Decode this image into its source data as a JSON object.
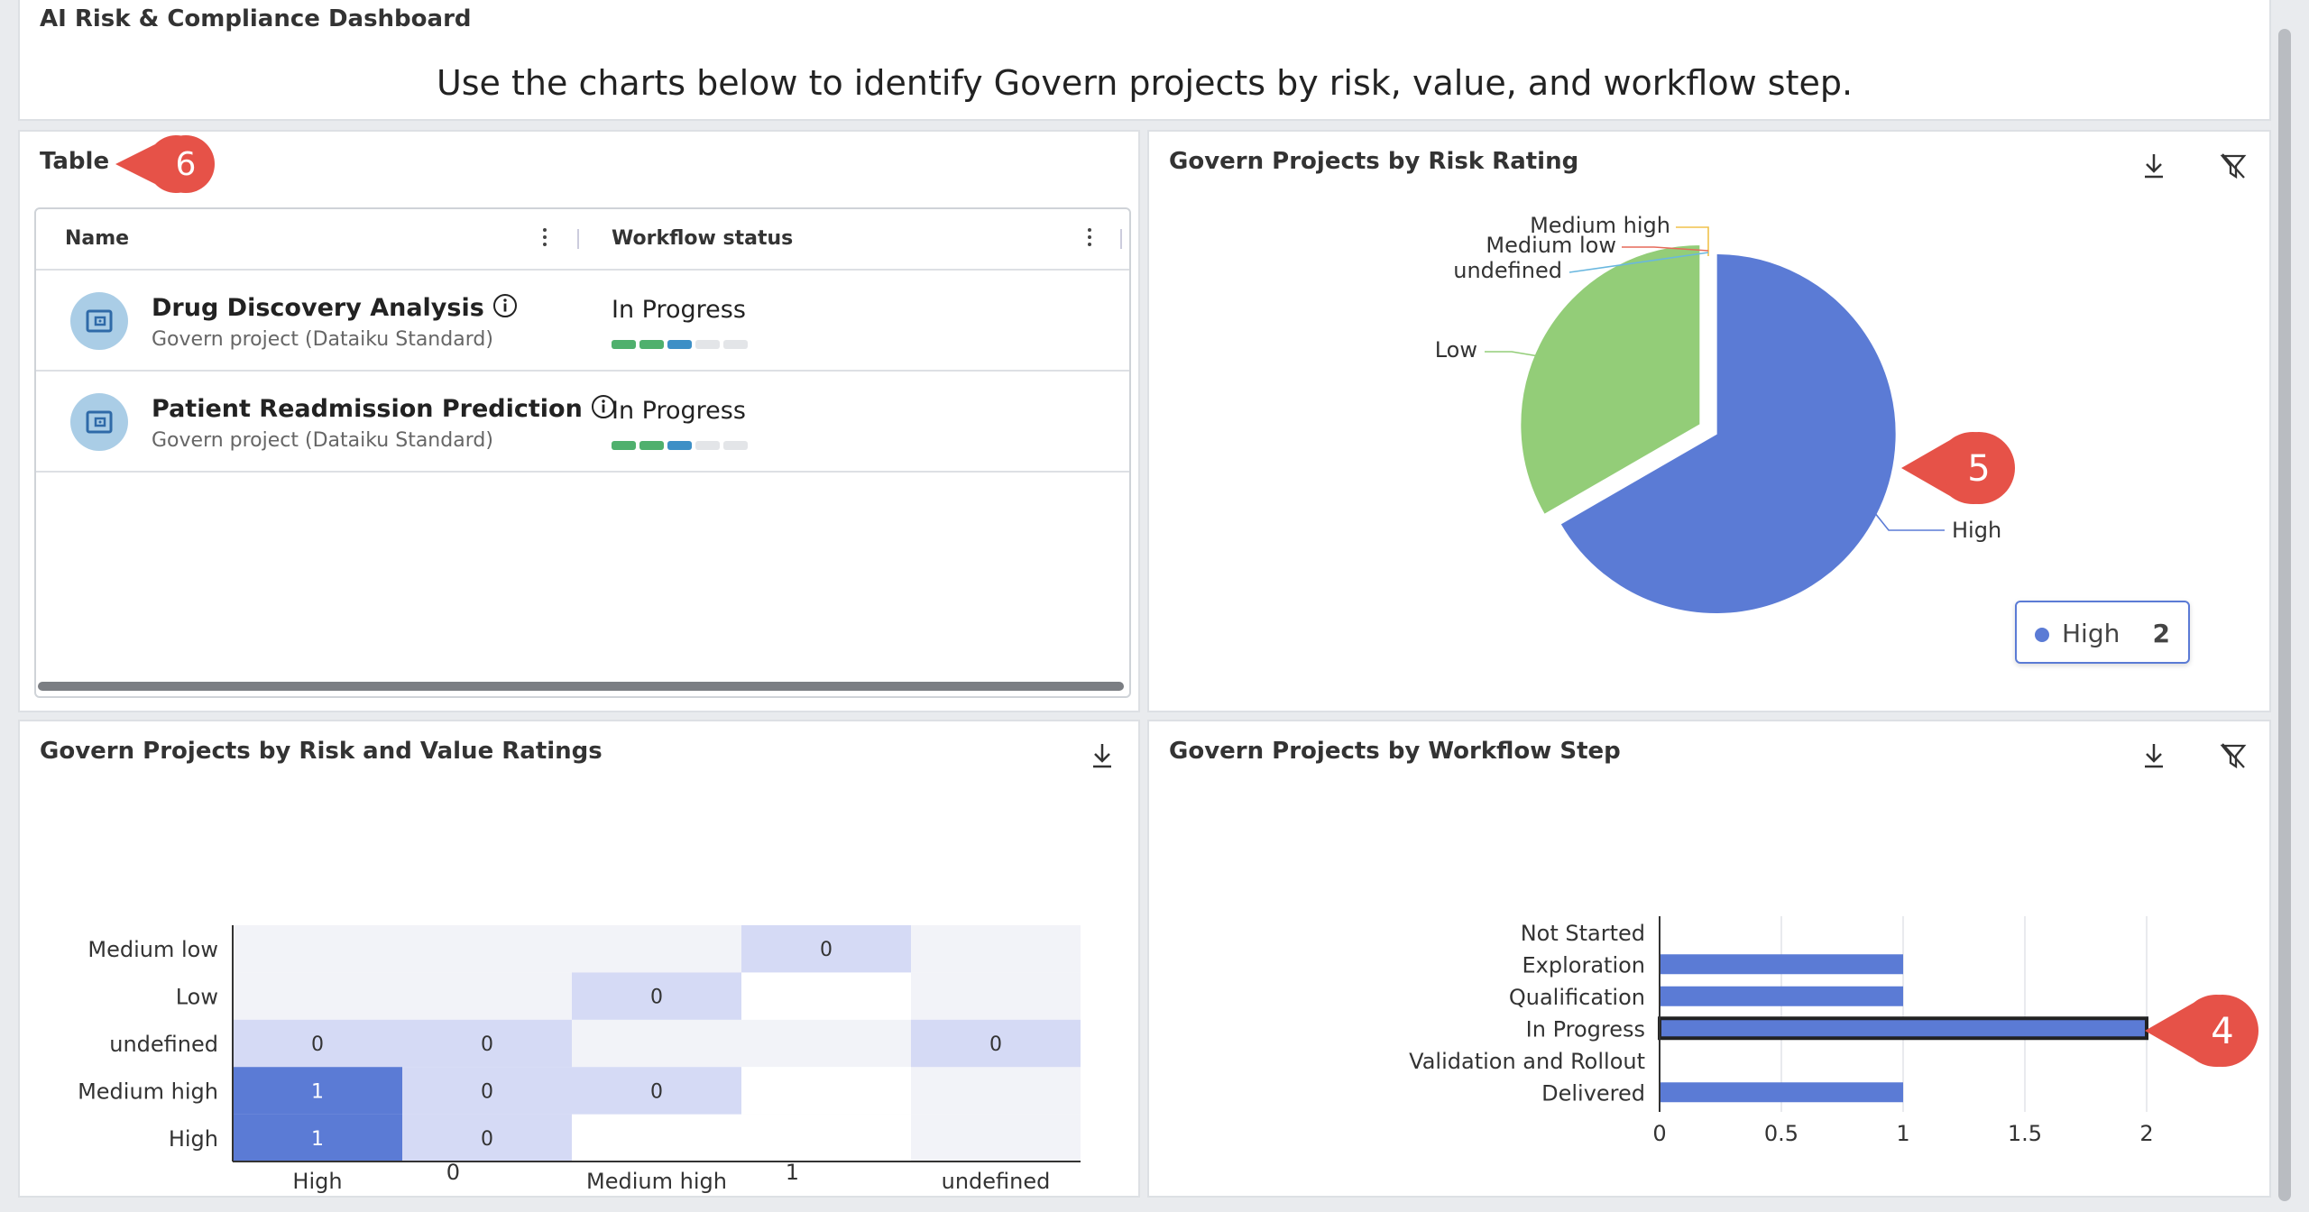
{
  "header": {
    "app_title": "AI Risk & Compliance Dashboard",
    "subtitle": "Use the charts below to identify Govern projects by risk, value, and workflow step."
  },
  "table_panel": {
    "title": "Table",
    "badge": "6",
    "columns": [
      "Name",
      "Workflow status"
    ],
    "rows": [
      {
        "name": "Drug Discovery Analysis",
        "subtitle": "Govern project (Dataiku Standard)",
        "status": "In Progress",
        "steps": [
          "done",
          "done",
          "current",
          "todo",
          "todo"
        ]
      },
      {
        "name": "Patient Readmission Prediction",
        "subtitle": "Govern project (Dataiku Standard)",
        "status": "In Progress",
        "steps": [
          "done",
          "done",
          "current",
          "todo",
          "todo"
        ]
      }
    ],
    "icons": [
      "project-icon",
      "info-icon",
      "kebab-menu-icon"
    ]
  },
  "pie_panel": {
    "title": "Govern Projects by Risk Rating",
    "badge": "5",
    "legend": {
      "label": "High",
      "value": "2"
    },
    "icons": [
      "download-icon",
      "filter-clear-icon"
    ]
  },
  "heatmap_panel": {
    "title": "Govern Projects by Risk and Value Ratings",
    "icons": [
      "download-icon"
    ]
  },
  "bar_panel": {
    "title": "Govern Projects by Workflow Step",
    "badge": "4",
    "icons": [
      "download-icon",
      "filter-clear-icon"
    ]
  },
  "colors": {
    "accent": "#5b7bd5",
    "low": "#93cd78",
    "medium_low": "#e66a5a",
    "medium_high": "#f0c24b",
    "undefined": "#69b7df",
    "badge": "#e65248",
    "step_done": "#4fb06d",
    "step_current": "#3d8fc6",
    "step_todo": "#e3e5e8"
  },
  "chart_data": [
    {
      "type": "pie",
      "labels": [
        "High",
        "Low",
        "undefined",
        "Medium low",
        "Medium high"
      ],
      "values": [
        2,
        1,
        0,
        0,
        0
      ]
    },
    {
      "type": "heatmap",
      "y_categories": [
        "Medium low",
        "Low",
        "undefined",
        "Medium high",
        "High"
      ],
      "x_tick_labels": [
        "High",
        "0",
        "Medium high",
        "1",
        "undefined"
      ],
      "cells": [
        {
          "row": "Medium low",
          "col": 3,
          "value": 0
        },
        {
          "row": "Low",
          "col": 2,
          "value": 0
        },
        {
          "row": "undefined",
          "col": 0,
          "value": 0
        },
        {
          "row": "undefined",
          "col": 1,
          "value": 0
        },
        {
          "row": "undefined",
          "col": 4,
          "value": 0
        },
        {
          "row": "Medium high",
          "col": 0,
          "value": 1
        },
        {
          "row": "Medium high",
          "col": 1,
          "value": 0
        },
        {
          "row": "Medium high",
          "col": 2,
          "value": 0
        },
        {
          "row": "High",
          "col": 0,
          "value": 1
        },
        {
          "row": "High",
          "col": 1,
          "value": 0
        }
      ]
    },
    {
      "type": "bar",
      "orientation": "horizontal",
      "categories": [
        "Not Started",
        "Exploration",
        "Qualification",
        "In Progress",
        "Validation and Rollout",
        "Delivered"
      ],
      "values": [
        0,
        1,
        1,
        2,
        0,
        1
      ],
      "xlim": [
        0,
        2
      ],
      "x_ticks": [
        "0",
        "0.5",
        "1",
        "1.5",
        "2"
      ],
      "grid": true,
      "highlighted": "In Progress"
    }
  ]
}
